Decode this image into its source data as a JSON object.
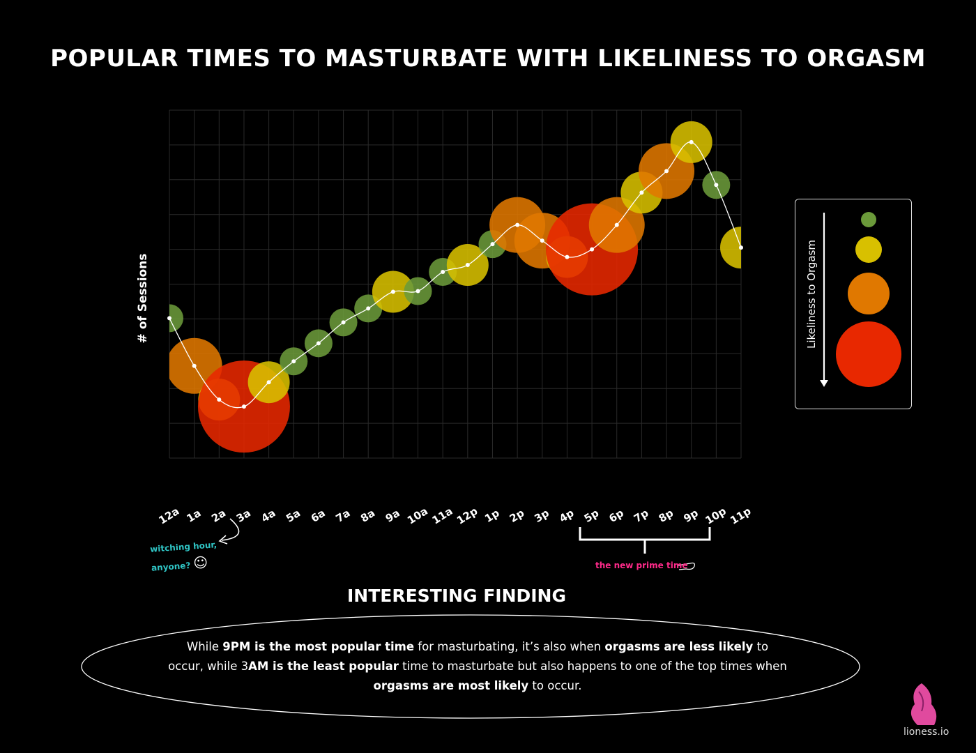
{
  "header": {
    "title": "POPULAR TIMES TO MASTURBATE WITH LIKELINESS TO ORGASM"
  },
  "chart_data": {
    "type": "scatter",
    "subtype": "bubble-line",
    "title": "POPULAR TIMES TO MASTURBATE WITH LIKELINESS TO ORGASM",
    "xlabel": "",
    "ylabel": "# of Sessions",
    "categories": [
      "12a",
      "1a",
      "2a",
      "3a",
      "4a",
      "5a",
      "6a",
      "7a",
      "8a",
      "9a",
      "10a",
      "11a",
      "12p",
      "1p",
      "2p",
      "3p",
      "4p",
      "5p",
      "6p",
      "7p",
      "8p",
      "9p",
      "10p",
      "11p"
    ],
    "series": [
      {
        "name": "Sessions",
        "values": [
          4.02,
          2.65,
          1.68,
          1.48,
          2.18,
          2.78,
          3.3,
          3.9,
          4.3,
          4.78,
          4.8,
          5.35,
          5.55,
          6.15,
          6.7,
          6.25,
          5.78,
          6.0,
          6.7,
          7.63,
          8.25,
          9.08,
          7.85,
          6.05
        ]
      }
    ],
    "likeliness_to_orgasm": [
      1,
      3,
      2,
      4,
      2,
      1,
      1,
      1,
      1,
      2,
      1,
      1,
      2,
      1,
      3,
      3,
      2,
      4,
      3,
      2,
      3,
      2,
      1,
      2
    ],
    "ylim": [
      0,
      10
    ],
    "grid": true,
    "legend": {
      "title": "Likeliness to Orgasm",
      "levels": [
        1,
        2,
        3,
        4
      ],
      "colors": [
        "#6b9a3a",
        "#d8c000",
        "#e07800",
        "#e82800"
      ],
      "placement": "right"
    },
    "colors": {
      "level1": "#6b9a3a",
      "level2": "#d8c000",
      "level3": "#e07800",
      "level4": "#e82800",
      "line": "#ffffff",
      "grid": "#2a2a2a"
    }
  },
  "annotations": {
    "witching_line1": "witching hour,",
    "witching_line2": "anyone?",
    "witching_emoji": "☺",
    "prime_time": "the new prime time"
  },
  "finding": {
    "title": "INTERESTING FINDING",
    "t1": "While ",
    "b1": "9PM is the most popular time",
    "t2": " for masturbating, it’s also when ",
    "b2": "orgasms are less likely",
    "t3": " to occur, while 3",
    "b3": "AM is the least popular",
    "t4": " time to masturbate but also happens to one of the top times when ",
    "b4": "orgasms are most likely",
    "t5": " to occur."
  },
  "brand": {
    "name": "lioness.io",
    "logo_icon": "lioness-logo-icon"
  }
}
